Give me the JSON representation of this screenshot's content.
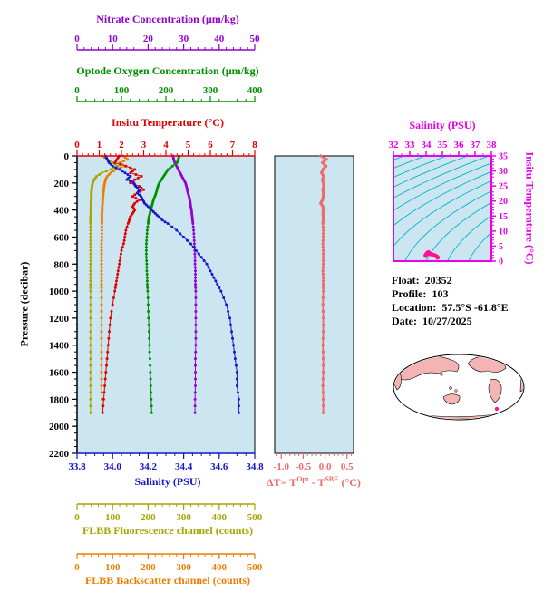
{
  "figure": {
    "background": "#ffffff",
    "plot_bg": "#cbe6f1"
  },
  "axes": {
    "nitrate": {
      "label": "Nitrate Concentration (µm/kg)",
      "color": "#9400d3",
      "range": [
        0,
        50
      ],
      "ticks": [
        0,
        10,
        20,
        30,
        40,
        50
      ]
    },
    "oxygen": {
      "label": "Optode Oxygen Concentration (µm/kg)",
      "color": "#008f00",
      "range": [
        0,
        400
      ],
      "ticks": [
        0,
        100,
        200,
        300,
        400
      ]
    },
    "temperature": {
      "label": "Insitu Temperature (°C)",
      "color": "#e10000",
      "range": [
        0,
        8
      ],
      "ticks": [
        0,
        1,
        2,
        3,
        4,
        5,
        6,
        7,
        8
      ]
    },
    "pressure": {
      "label": "Pressure (decibar)",
      "color": "#000000",
      "range": [
        0,
        2200
      ],
      "ticks": [
        0,
        200,
        400,
        600,
        800,
        1000,
        1200,
        1400,
        1600,
        1800,
        2000,
        2200
      ]
    },
    "salinity": {
      "label": "Salinity (PSU)",
      "color": "#1515cf",
      "range": [
        33.8,
        34.8
      ],
      "decimals": 1,
      "ticks": [
        33.8,
        34.0,
        34.2,
        34.4,
        34.6,
        34.8
      ]
    },
    "delta": {
      "color": "#ef6a6a",
      "decimals": 1,
      "ticks": [
        -1.0,
        -0.5,
        0.0,
        0.5
      ]
    },
    "fluorescence": {
      "label": "FLBB Fluorescence channel (counts)",
      "color": "#a8a400",
      "range": [
        0,
        500
      ],
      "ticks": [
        0,
        100,
        200,
        300,
        400,
        500
      ]
    },
    "backscatter": {
      "label": "FLBB Backscatter channel (counts)",
      "color": "#ef7d00",
      "range": [
        0,
        500
      ],
      "ticks": [
        0,
        100,
        200,
        300,
        400,
        500
      ]
    },
    "ts_salinity": {
      "label": "Salinity (PSU)",
      "color": "#e800e8",
      "range": [
        32,
        38
      ],
      "ticks": [
        32,
        33,
        34,
        35,
        36,
        37,
        38
      ]
    },
    "ts_temperature": {
      "label": "Insitu Temperature (°C)",
      "color": "#e800e8",
      "range": [
        0,
        35
      ],
      "ticks": [
        0,
        5,
        10,
        15,
        20,
        25,
        30,
        35
      ]
    }
  },
  "delta_label": {
    "p1": "ΔT= T",
    "sup1": "Opt",
    "p2": " - T",
    "sup2": "SBE",
    "p3": " (°C)"
  },
  "info": {
    "float_label": "Float:",
    "float_value": "20352",
    "profile_label": "Profile:",
    "profile_value": "103",
    "location_label": "Location:",
    "location_value": "57.5°S  -61.8°E",
    "date_label": "Date:",
    "date_value": "10/27/2025"
  },
  "ts_style": {
    "contour_color": "#00b4cd",
    "point_color": "#ff1493"
  },
  "map_style": {
    "land_color": "#f4b4b4",
    "ocean_color": "#ffffff"
  },
  "chart_data": {
    "type": "line",
    "description": "Argo float vertical profiles vs pressure, optode-minus-SBE temperature difference panel, and T-S diagram with isopycnals",
    "y_axis": {
      "label": "Pressure (decibar)",
      "range": [
        0,
        2200
      ],
      "inverted": true
    },
    "pressure_dbar": [
      0,
      25,
      50,
      75,
      100,
      125,
      150,
      175,
      200,
      225,
      250,
      275,
      300,
      325,
      350,
      375,
      400,
      425,
      450,
      475,
      500,
      550,
      600,
      650,
      700,
      750,
      800,
      850,
      900,
      950,
      1000,
      1100,
      1200,
      1300,
      1400,
      1500,
      1600,
      1700,
      1800,
      1900
    ],
    "profiles": [
      {
        "id": "salinity",
        "axis": "salinity",
        "name": "Salinity",
        "units": "PSU",
        "values": [
          33.96,
          33.97,
          33.98,
          34.0,
          34.04,
          34.07,
          34.1,
          34.08,
          34.12,
          34.13,
          34.15,
          34.14,
          34.16,
          34.17,
          34.18,
          34.2,
          34.22,
          34.24,
          34.26,
          34.28,
          34.31,
          34.36,
          34.4,
          34.44,
          34.47,
          34.5,
          34.53,
          34.55,
          34.57,
          34.59,
          34.61,
          34.64,
          34.66,
          34.67,
          34.68,
          34.69,
          34.7,
          34.7,
          34.71,
          34.71
        ]
      },
      {
        "id": "temperature",
        "axis": "temperature",
        "name": "Insitu Temperature",
        "units": "°C",
        "values": [
          1.9,
          1.8,
          1.7,
          2.2,
          2.6,
          2.4,
          2.9,
          2.6,
          2.4,
          2.8,
          3.0,
          2.7,
          2.5,
          2.8,
          2.6,
          2.5,
          2.6,
          2.5,
          2.4,
          2.35,
          2.3,
          2.2,
          2.15,
          2.1,
          2.0,
          1.95,
          1.9,
          1.85,
          1.8,
          1.75,
          1.7,
          1.6,
          1.5,
          1.45,
          1.4,
          1.35,
          1.3,
          1.25,
          1.2,
          1.15
        ]
      },
      {
        "id": "oxygen",
        "axis": "oxygen",
        "name": "Optode Oxygen Concentration",
        "units": "µm/kg",
        "values": [
          230,
          228,
          225,
          215,
          205,
          200,
          195,
          190,
          185,
          182,
          180,
          178,
          175,
          172,
          170,
          168,
          166,
          164,
          162,
          161,
          160,
          158,
          157,
          156,
          156,
          156,
          157,
          157,
          158,
          158,
          159,
          160,
          161,
          162,
          163,
          164,
          165,
          166,
          167,
          168
        ]
      },
      {
        "id": "nitrate",
        "axis": "nitrate",
        "name": "Nitrate Concentration",
        "units": "µm/kg",
        "values": [
          27.0,
          27.2,
          27.5,
          28.0,
          28.5,
          29.0,
          29.5,
          30.0,
          30.5,
          30.8,
          31.0,
          31.2,
          31.5,
          31.7,
          31.9,
          32.0,
          32.2,
          32.3,
          32.4,
          32.5,
          32.6,
          32.8,
          32.9,
          33.0,
          33.1,
          33.2,
          33.2,
          33.3,
          33.3,
          33.3,
          33.4,
          33.4,
          33.4,
          33.4,
          33.4,
          33.3,
          33.3,
          33.3,
          33.2,
          33.2
        ]
      },
      {
        "id": "fluorescence",
        "axis": "fluorescence",
        "name": "FLBB Fluorescence channel",
        "units": "counts",
        "values": [
          70,
          85,
          100,
          115,
          95,
          70,
          55,
          48,
          44,
          42,
          41,
          40,
          40,
          40,
          39,
          39,
          39,
          39,
          38,
          38,
          38,
          38,
          38,
          38,
          38,
          38,
          38,
          38,
          38,
          38,
          38,
          38,
          38,
          38,
          38,
          38,
          38,
          38,
          38,
          38
        ]
      },
      {
        "id": "backscatter",
        "axis": "backscatter",
        "name": "FLBB Backscatter channel",
        "units": "counts",
        "values": [
          130,
          142,
          120,
          135,
          110,
          95,
          85,
          80,
          78,
          76,
          75,
          74,
          73,
          72,
          72,
          71,
          71,
          70,
          70,
          70,
          70,
          70,
          70,
          69,
          69,
          69,
          69,
          69,
          69,
          69,
          69,
          69,
          69,
          69,
          69,
          69,
          69,
          69,
          70,
          72
        ]
      }
    ],
    "delta_T": {
      "name": "ΔT = T_Opt - T_SBE",
      "units": "°C",
      "color": "#ef6a6a",
      "x_range": [
        -1.15,
        0.65
      ],
      "values": [
        -0.1,
        0.03,
        -0.06,
        0.02,
        -0.05,
        -0.08,
        -0.03,
        -0.06,
        -0.04,
        -0.03,
        -0.05,
        -0.04,
        -0.04,
        -0.06,
        -0.1,
        -0.05,
        -0.04,
        -0.05,
        -0.04,
        -0.04,
        -0.05,
        -0.04,
        -0.04,
        -0.05,
        -0.04,
        -0.04,
        -0.04,
        -0.05,
        -0.04,
        -0.04,
        -0.04,
        -0.05,
        -0.04,
        -0.04,
        -0.05,
        -0.04,
        -0.04,
        -0.05,
        -0.04,
        -0.04
      ]
    },
    "ts_diagram": {
      "s_range": [
        32,
        38
      ],
      "t_range": [
        0,
        35
      ],
      "isopycnals_sigma": [
        18,
        19,
        20,
        21,
        22,
        23,
        24,
        25,
        26,
        27,
        28,
        29,
        30
      ]
    }
  }
}
